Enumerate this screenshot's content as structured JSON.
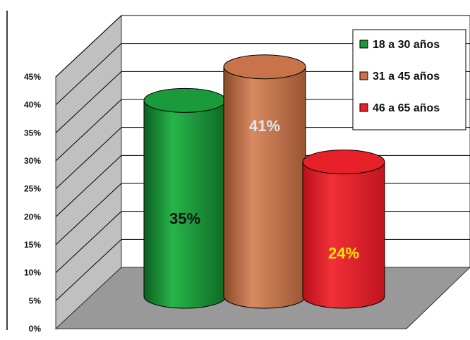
{
  "chart_data": {
    "type": "bar",
    "style": "3d-cylinder",
    "categories": [
      "18 a 30 años",
      "31 a 45 años",
      "46 a 65 años"
    ],
    "values": [
      35,
      41,
      24
    ],
    "data_labels": [
      "35%",
      "41%",
      "24%"
    ],
    "ylim": [
      0,
      45
    ],
    "ytick_labels": [
      "0%",
      "5%",
      "10%",
      "15%",
      "20%",
      "25%",
      "30%",
      "35%",
      "40%",
      "45%"
    ],
    "grid": true,
    "legend_position": "top-right",
    "colors": {
      "series": [
        "#1a9a3a",
        "#c8734a",
        "#e8202a"
      ],
      "label_text": [
        "#111111",
        "#dde6ee",
        "#ffe600"
      ]
    }
  }
}
